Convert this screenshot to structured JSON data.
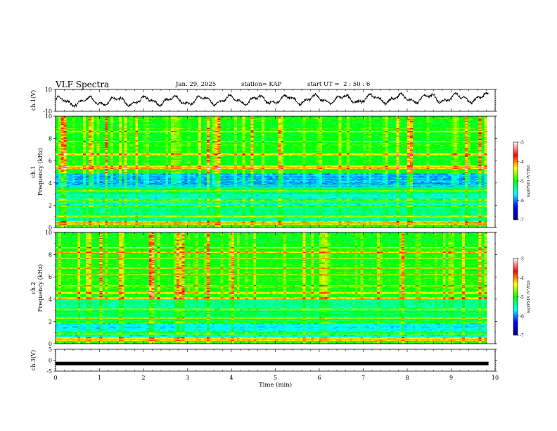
{
  "header": {
    "title": "VLF Spectra",
    "date": "Jan. 29, 2025",
    "station": "station= KAP",
    "start": "start UT =  2 : 50 : 6"
  },
  "chart_data": [
    {
      "type": "line",
      "ylabel": "ch.1(V)",
      "ylim": [
        -10,
        10
      ],
      "yticks": [
        "10",
        "-10"
      ],
      "xlim": [
        0,
        10
      ],
      "waveform_color": "#000000"
    },
    {
      "type": "heatmap",
      "ylabel": "ch.1\nFrequency (kHz)",
      "ylabel_lines": [
        "ch.1",
        "Frequency (kHz)"
      ],
      "xlim": [
        0,
        10
      ],
      "ylim": [
        0,
        10
      ],
      "yticks": [
        "0",
        "2",
        "4",
        "6",
        "8",
        "10"
      ],
      "data_x_extent_min": 9.85,
      "colorbar": {
        "label": "log(PSD) (V²/Hz)",
        "range": [
          -7,
          -3
        ],
        "ticks": [
          "-3",
          "-4",
          "-5",
          "-6",
          "-7"
        ],
        "colors": [
          "#000080",
          "#0000ff",
          "#00ffff",
          "#00ff00",
          "#ffff00",
          "#ff0000",
          "#ffffff"
        ]
      },
      "base_level_bands_khz": [
        {
          "from": 0,
          "to": 0.6,
          "level": "yellow-green"
        },
        {
          "from": 0.6,
          "to": 1.8,
          "level": "cyan-green"
        },
        {
          "from": 1.8,
          "to": 3.0,
          "level": "cyan"
        },
        {
          "from": 3.0,
          "to": 3.6,
          "level": "green"
        },
        {
          "from": 3.6,
          "to": 4.9,
          "level": "cyan-blue"
        },
        {
          "from": 4.9,
          "to": 10,
          "level": "green-yellow"
        }
      ],
      "narrowband_lines_khz": [
        0.3,
        0.5,
        1.0,
        1.9,
        2.2,
        2.5,
        3.3,
        3.6,
        3.8,
        4.9,
        5.3,
        5.5,
        6.6,
        7.7,
        8.6
      ]
    },
    {
      "type": "heatmap",
      "ylabel": "ch.2\nFrequency (kHz)",
      "ylabel_lines": [
        "ch.2",
        "Frequency (kHz)"
      ],
      "xlim": [
        0,
        10
      ],
      "ylim": [
        0,
        10
      ],
      "yticks": [
        "0",
        "2",
        "4",
        "6",
        "8",
        "10"
      ],
      "data_x_extent_min": 9.85,
      "colorbar": {
        "label": "log(PSD) (V²/Hz)",
        "range": [
          -7,
          -3
        ],
        "ticks": [
          "-3",
          "-4",
          "-5",
          "-6",
          "-7"
        ],
        "colors": [
          "#000080",
          "#0000ff",
          "#00ffff",
          "#00ff00",
          "#ffff00",
          "#ff0000",
          "#ffffff"
        ]
      },
      "base_level_bands_khz": [
        {
          "from": 0,
          "to": 0.6,
          "level": "yellow-green"
        },
        {
          "from": 0.6,
          "to": 2.0,
          "level": "cyan"
        },
        {
          "from": 2.0,
          "to": 3.0,
          "level": "green"
        },
        {
          "from": 3.0,
          "to": 4.0,
          "level": "cyan-green"
        },
        {
          "from": 4.0,
          "to": 10,
          "level": "green-yellow"
        }
      ],
      "narrowband_lines_khz": [
        0.3,
        0.5,
        0.9,
        1.9,
        2.3,
        3.1,
        4.1,
        4.6,
        5.2,
        6.2,
        6.8,
        7.6,
        8.2,
        8.6
      ]
    },
    {
      "type": "line",
      "ylabel": "ch.3(V)",
      "xlabel": "Time (min)",
      "ylim": [
        -5,
        5
      ],
      "yticks": [
        "5",
        "0",
        "-5"
      ],
      "xlim": [
        0,
        10
      ],
      "xticks": [
        "0",
        "1",
        "2",
        "3",
        "4",
        "5",
        "6",
        "7",
        "8",
        "9",
        "10"
      ],
      "trace_value_v": -1.5,
      "trace_end_min": 9.85
    }
  ]
}
